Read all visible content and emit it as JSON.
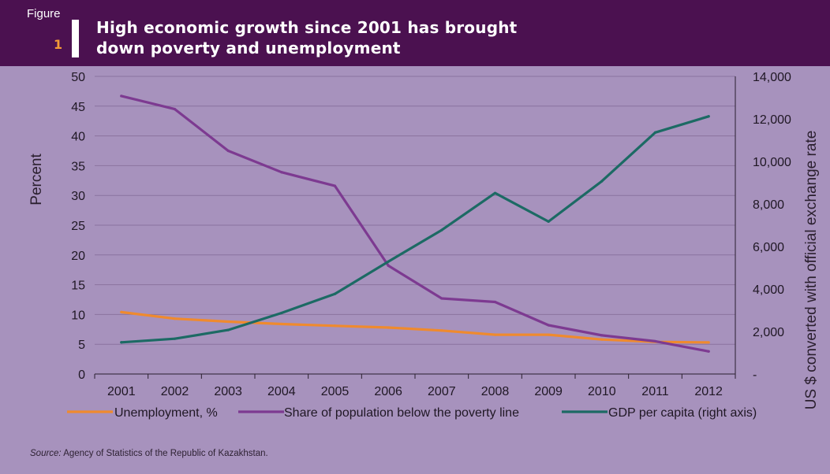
{
  "figure": {
    "label": "Figure",
    "number": "1",
    "title_line1": "High economic growth since 2001 has brought",
    "title_line2": "down poverty and unemployment"
  },
  "source": {
    "prefix": "Source:",
    "text": " Agency of Statistics of the Republic of Kazakhstan."
  },
  "colors": {
    "background": "#a792bd",
    "banner": "#4b1150",
    "accent": "#f39a37",
    "unemployment": "#ef8a2e",
    "poverty": "#7d3a91",
    "gdp": "#1c6a64"
  },
  "chart_data": {
    "type": "line",
    "x": [
      "2001",
      "2002",
      "2003",
      "2004",
      "2005",
      "2006",
      "2007",
      "2008",
      "2009",
      "2010",
      "2011",
      "2012"
    ],
    "series": [
      {
        "name": "Unemployment, %",
        "axis": "left",
        "color": "#ef8a2e",
        "values": [
          10.4,
          9.3,
          8.8,
          8.4,
          8.1,
          7.8,
          7.3,
          6.6,
          6.6,
          5.8,
          5.4,
          5.3
        ]
      },
      {
        "name": "Share of population below the poverty line",
        "axis": "left",
        "color": "#7d3a91",
        "values": [
          46.7,
          44.5,
          37.5,
          33.9,
          31.6,
          18.2,
          12.7,
          12.1,
          8.2,
          6.5,
          5.5,
          3.8
        ]
      },
      {
        "name": "GDP per capita (right axis)",
        "axis": "right",
        "color": "#1c6a64",
        "values": [
          1490,
          1660,
          2070,
          2870,
          3770,
          5290,
          6770,
          8510,
          7170,
          9070,
          11360,
          12120
        ]
      }
    ],
    "ylabel": "Percent",
    "ylabel_right": "US $ converted with official exchange rate",
    "ylim": [
      0,
      50
    ],
    "yticks": [
      "0",
      "5",
      "10",
      "15",
      "20",
      "25",
      "30",
      "35",
      "40",
      "45",
      "50"
    ],
    "ylim_right": [
      0,
      14000
    ],
    "yticks_right": [
      "-",
      "2,000",
      "4,000",
      "6,000",
      "8,000",
      "10,000",
      "12,000",
      "14,000"
    ],
    "grid": true,
    "legend": "bottom"
  }
}
